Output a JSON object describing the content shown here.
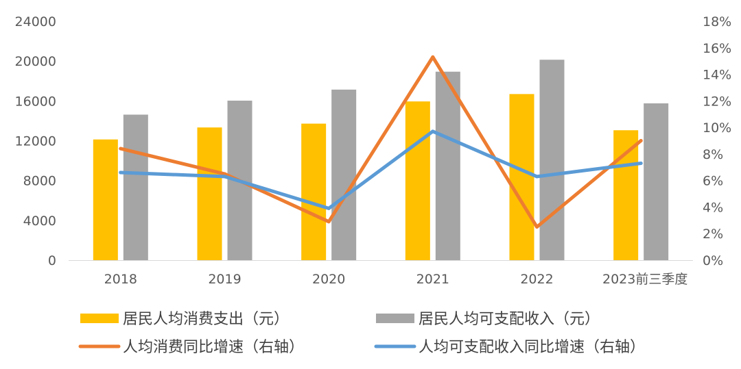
{
  "chart_data": {
    "type": "bar",
    "categories": [
      "2018",
      "2019",
      "2020",
      "2021",
      "2022",
      "2023前三季度"
    ],
    "series": [
      {
        "name": "居民人均消费支出（元）",
        "type": "bar",
        "axis": "left",
        "color": "#FFC000",
        "values": [
          12124,
          13328,
          13713,
          15943,
          16685,
          13049
        ]
      },
      {
        "name": "居民人均可支配收入（元）",
        "type": "bar",
        "axis": "left",
        "color": "#A5A5A5",
        "values": [
          14617,
          16021,
          17131,
          18931,
          20133,
          15750
        ]
      },
      {
        "name": "人均消费同比增速（右轴）",
        "type": "line",
        "axis": "right",
        "color": "#ED7D31",
        "values": [
          8.4,
          6.5,
          2.9,
          15.3,
          2.5,
          9.0
        ]
      },
      {
        "name": "人均可支配收入同比增速（右轴）",
        "type": "line",
        "axis": "right",
        "color": "#5B9BD5",
        "values": [
          6.6,
          6.3,
          3.9,
          9.7,
          6.3,
          7.3
        ]
      }
    ],
    "y_left": {
      "min": 0,
      "max": 24000,
      "ticks": [
        "0",
        "4000",
        "8000",
        "12000",
        "16000",
        "20000",
        "24000"
      ]
    },
    "y_right": {
      "min": 0,
      "max": 18,
      "ticks": [
        "0%",
        "2%",
        "4%",
        "6%",
        "8%",
        "10%",
        "12%",
        "14%",
        "16%",
        "18%"
      ]
    },
    "grid": false,
    "legend_position": "bottom"
  }
}
